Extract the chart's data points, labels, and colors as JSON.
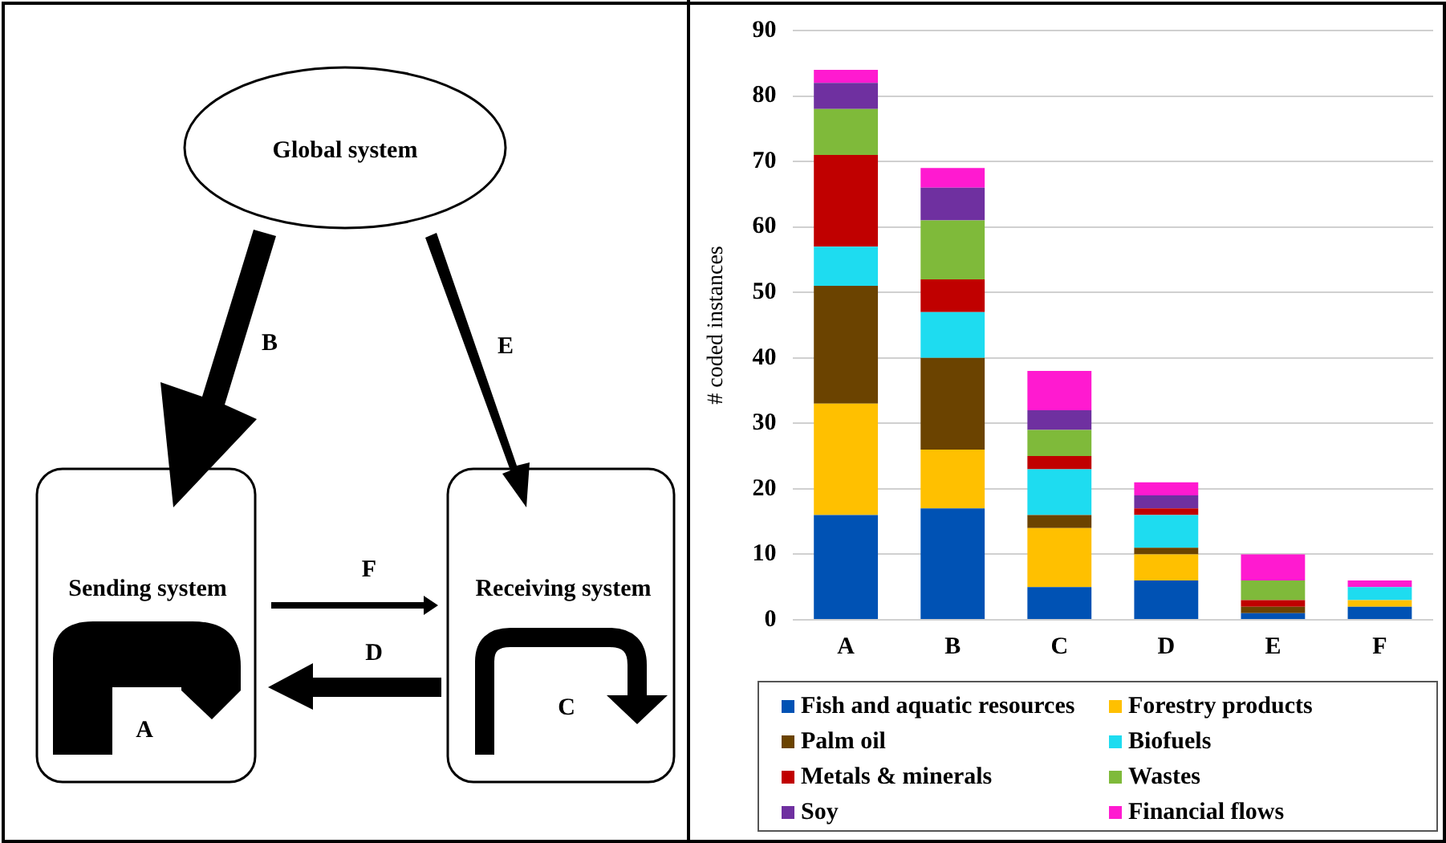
{
  "chart_data": {
    "type": "bar",
    "stacked": true,
    "ylabel": "# coded instances",
    "categories": [
      "A",
      "B",
      "C",
      "D",
      "E",
      "F"
    ],
    "series": [
      {
        "name": "Fish and aquatic resources",
        "color": "#0052b4",
        "values": [
          16,
          17,
          5,
          6,
          1,
          2
        ]
      },
      {
        "name": "Forestry products",
        "color": "#ffc000",
        "values": [
          17,
          9,
          9,
          4,
          0,
          1
        ]
      },
      {
        "name": "Palm oil",
        "color": "#6b4300",
        "values": [
          18,
          14,
          2,
          1,
          1,
          0
        ]
      },
      {
        "name": "Biofuels",
        "color": "#1edcf0",
        "values": [
          6,
          7,
          7,
          5,
          0,
          2
        ]
      },
      {
        "name": "Metals & minerals",
        "color": "#c00000",
        "values": [
          14,
          5,
          2,
          1,
          1,
          0
        ]
      },
      {
        "name": "Wastes",
        "color": "#7fba3a",
        "values": [
          7,
          9,
          4,
          0,
          3,
          0
        ]
      },
      {
        "name": "Soy",
        "color": "#6f30a0",
        "values": [
          4,
          5,
          3,
          2,
          0,
          0
        ]
      },
      {
        "name": "Financial flows",
        "color": "#ff1ad0",
        "values": [
          2,
          3,
          6,
          2,
          4,
          1
        ]
      }
    ],
    "ylim": [
      0,
      90
    ],
    "yticks": [
      0,
      10,
      20,
      30,
      40,
      50,
      60,
      70,
      80,
      90
    ],
    "grid": "y",
    "legend": "bottom",
    "annotations": [
      "Global system",
      "B",
      "E",
      "Sending system",
      "F",
      "Receiving system",
      "D",
      "A",
      "C"
    ]
  }
}
